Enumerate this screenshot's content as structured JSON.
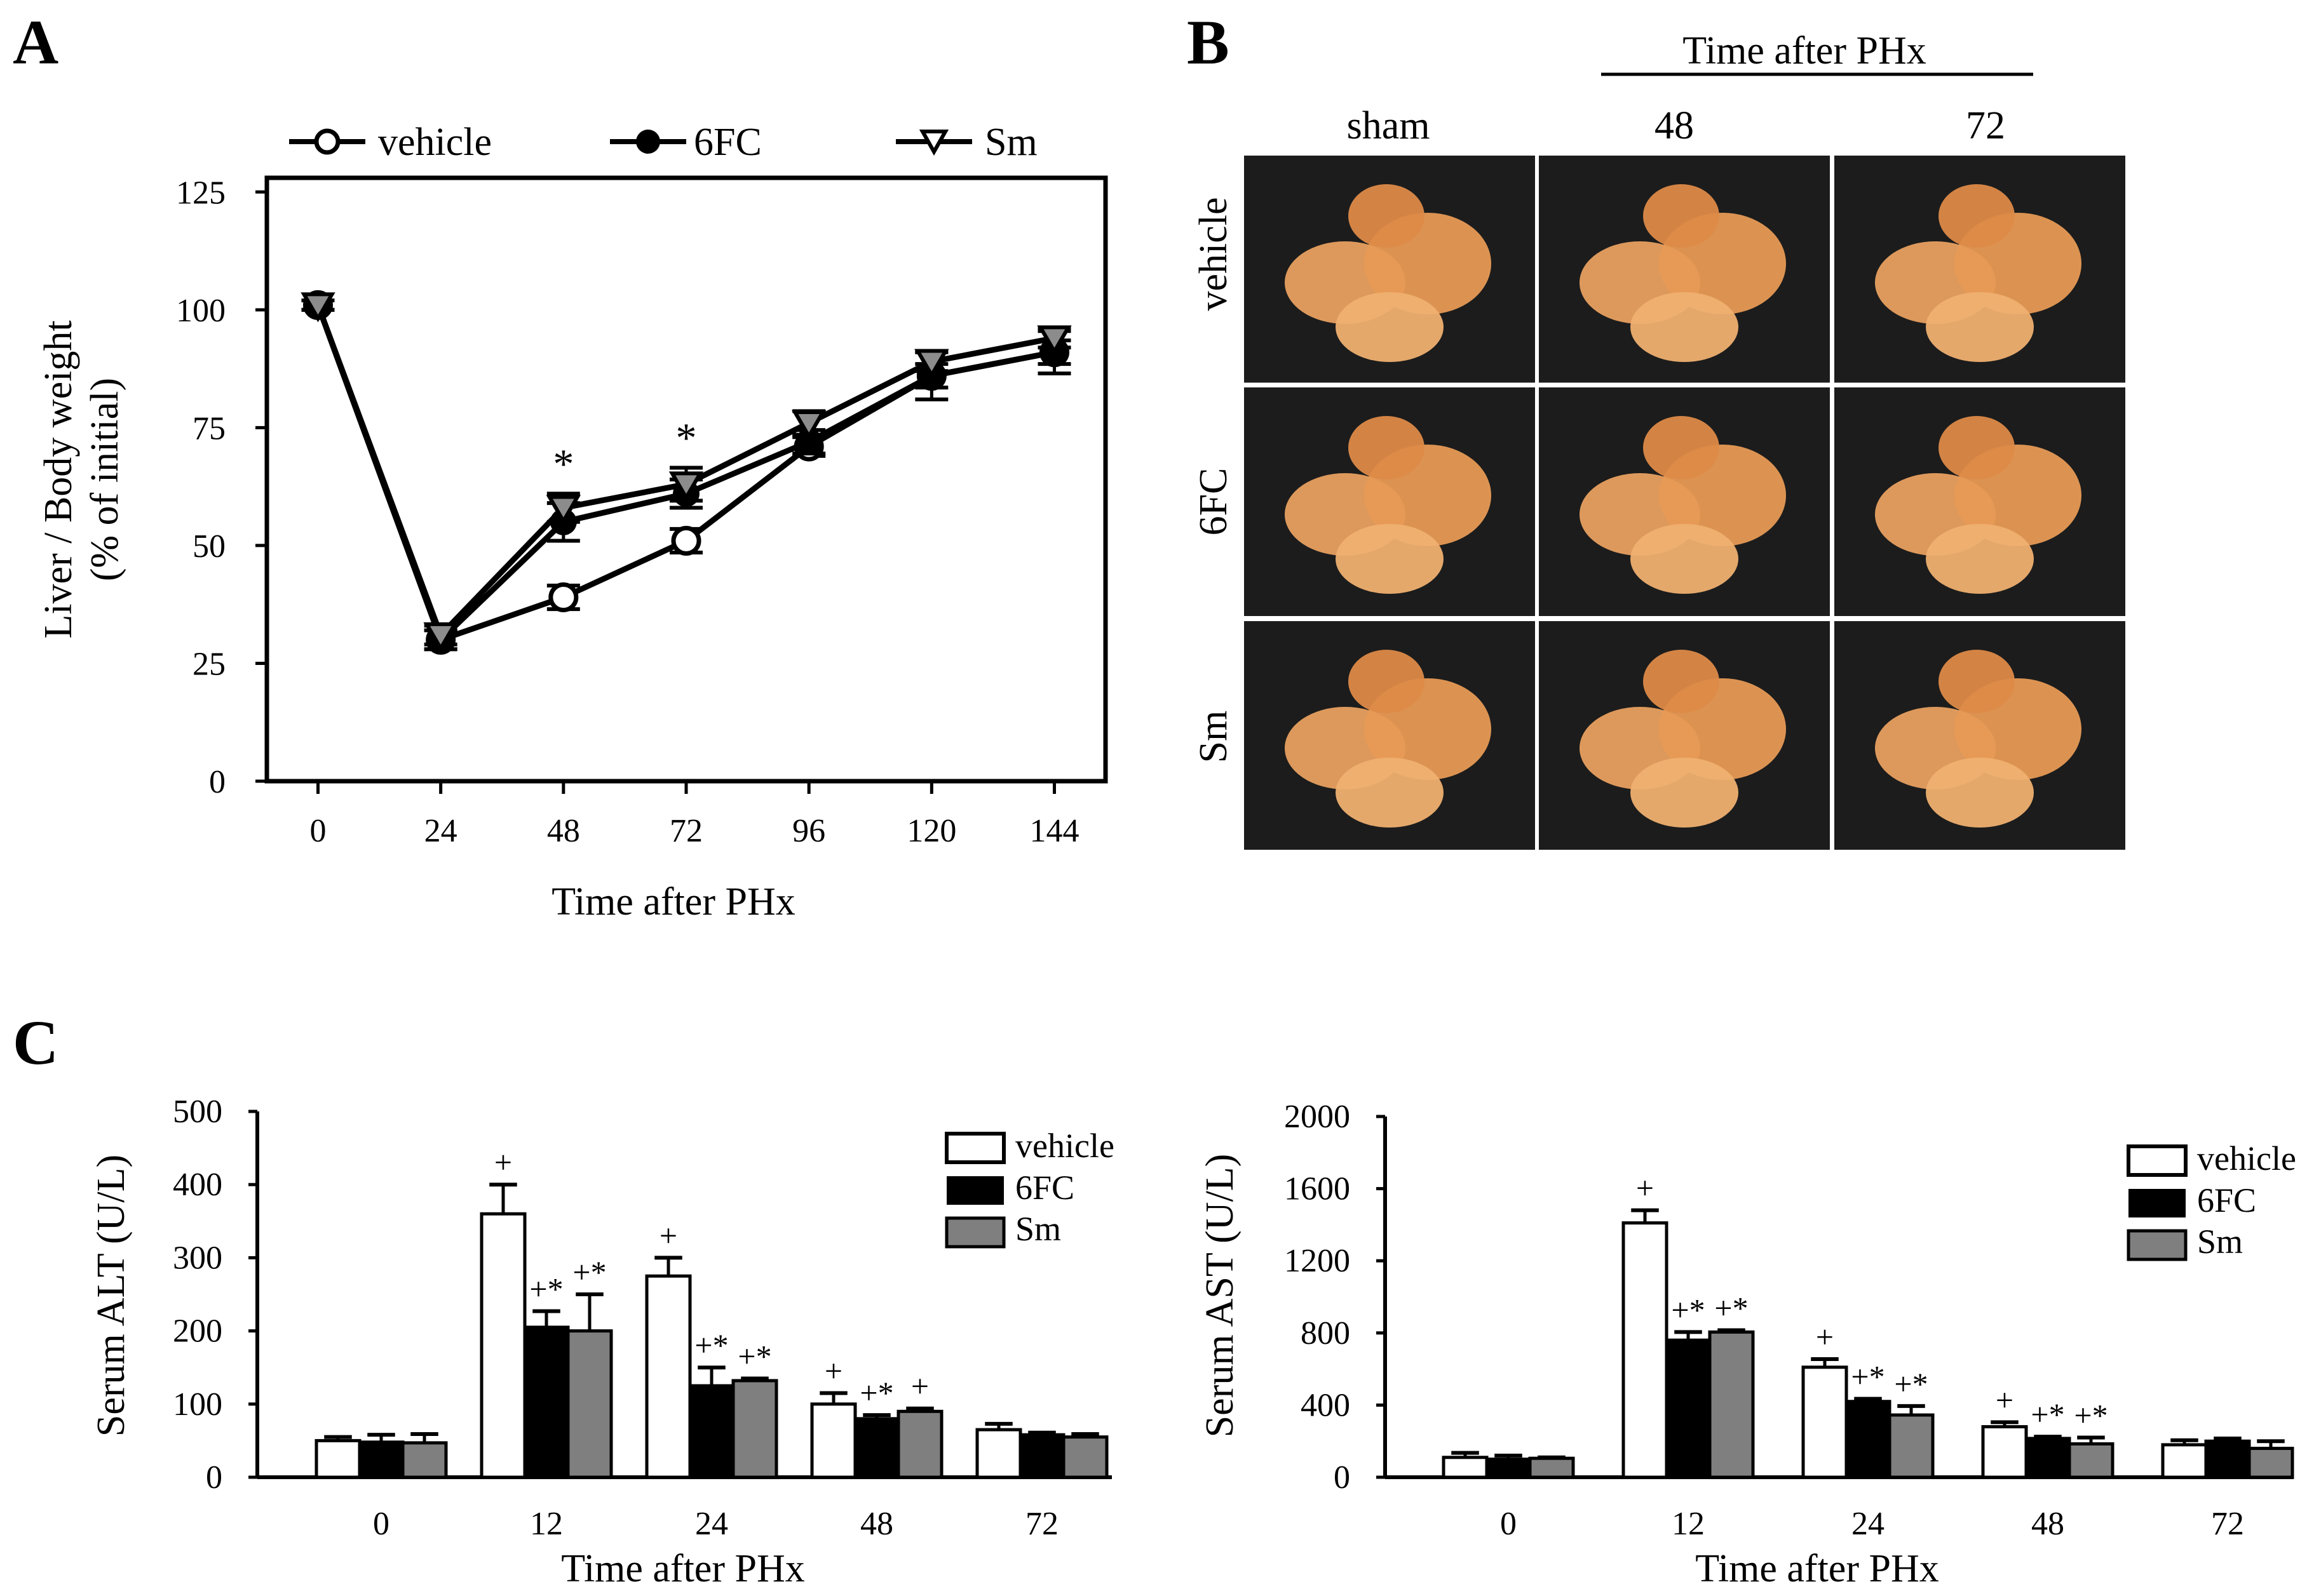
{
  "panels": {
    "a": "A",
    "b": "B",
    "c": "C"
  },
  "colors": {
    "vehicle": "#ffffff",
    "sixfc": "#000000",
    "sm": "#7f7f7f",
    "axis": "#000000",
    "photo_bg": "#1c1c1c",
    "liver": "#e8a060"
  },
  "chart_data": [
    {
      "id": "panelA",
      "type": "line",
      "title": "",
      "xlabel": "Time after PHx",
      "ylabel_line1": "Liver / Body weight",
      "ylabel_line2": "(% of initial)",
      "x": [
        0,
        24,
        48,
        72,
        96,
        120,
        144
      ],
      "x_tick_labels": [
        "0",
        "24",
        "48",
        "72",
        "96",
        "120",
        "144"
      ],
      "y_ticks": [
        0,
        25,
        50,
        75,
        100,
        125
      ],
      "y_tick_labels": [
        "0",
        "25",
        "50",
        "75",
        "100",
        "125"
      ],
      "xlim": [
        -10,
        154
      ],
      "ylim": [
        0,
        128
      ],
      "legend_position": "top",
      "series": [
        {
          "name": "vehicle",
          "marker": "open-circle",
          "values": [
            101,
            30,
            39,
            51,
            71,
            86,
            91
          ],
          "errors": [
            1,
            2,
            2.5,
            2.5,
            2,
            2.5,
            2.5
          ]
        },
        {
          "name": "6FC",
          "marker": "filled-circle",
          "values": [
            101,
            30,
            55,
            61,
            72,
            86,
            91
          ],
          "errors": [
            1,
            2,
            4,
            3,
            2.5,
            5,
            4.5
          ]
        },
        {
          "name": "Sm",
          "marker": "triangle-down",
          "values": [
            101,
            31,
            58,
            63,
            76,
            89,
            94
          ],
          "errors": [
            1,
            2,
            3,
            3.5,
            2.5,
            2,
            2
          ]
        }
      ],
      "annotations": [
        {
          "x": 48,
          "text": "*"
        },
        {
          "x": 72,
          "text": "*"
        }
      ]
    },
    {
      "id": "panelC_ALT",
      "type": "bar",
      "title": "",
      "xlabel": "Time after PHx",
      "ylabel": "Serum ALT (U/L)",
      "categories": [
        "0",
        "12",
        "24",
        "48",
        "72"
      ],
      "y_ticks": [
        0,
        100,
        200,
        300,
        400,
        500
      ],
      "y_tick_labels": [
        "0",
        "100",
        "200",
        "300",
        "400",
        "500"
      ],
      "ylim": [
        0,
        500
      ],
      "legend_position": "top-right",
      "series": [
        {
          "name": "vehicle",
          "values": [
            50,
            360,
            275,
            100,
            65
          ],
          "errors": [
            5,
            40,
            25,
            15,
            8
          ],
          "marks": [
            "",
            "+",
            "+",
            "+",
            ""
          ]
        },
        {
          "name": "6FC",
          "values": [
            48,
            205,
            125,
            80,
            58
          ],
          "errors": [
            10,
            22,
            25,
            5,
            3
          ],
          "marks": [
            "",
            "+*",
            "+*",
            "+*",
            ""
          ]
        },
        {
          "name": "Sm",
          "values": [
            47,
            200,
            132,
            90,
            55
          ],
          "errors": [
            12,
            50,
            3,
            4,
            4
          ],
          "marks": [
            "",
            "+*",
            "+*",
            "+",
            ""
          ]
        }
      ]
    },
    {
      "id": "panelC_AST",
      "type": "bar",
      "title": "",
      "xlabel": "Time after PHx",
      "ylabel": "Serum AST (U/L)",
      "categories": [
        "0",
        "12",
        "24",
        "48",
        "72"
      ],
      "y_ticks": [
        0,
        400,
        800,
        1200,
        1600,
        2000
      ],
      "y_tick_labels": [
        "0",
        "400",
        "800",
        "1200",
        "1600",
        "2000"
      ],
      "ylim": [
        0,
        2000
      ],
      "legend_position": "top-right",
      "series": [
        {
          "name": "vehicle",
          "values": [
            110,
            1410,
            610,
            280,
            180
          ],
          "errors": [
            25,
            70,
            45,
            25,
            25
          ],
          "marks": [
            "",
            "+",
            "+",
            "+",
            ""
          ]
        },
        {
          "name": "6FC",
          "values": [
            100,
            760,
            420,
            215,
            200
          ],
          "errors": [
            20,
            45,
            15,
            10,
            15
          ],
          "marks": [
            "",
            "+*",
            "+*",
            "+*",
            ""
          ]
        },
        {
          "name": "Sm",
          "values": [
            105,
            805,
            345,
            185,
            160
          ],
          "errors": [
            5,
            10,
            50,
            35,
            40
          ],
          "marks": [
            "",
            "+*",
            "+*",
            "+*",
            ""
          ]
        }
      ]
    }
  ],
  "photo_grid": {
    "header": "Time after PHx",
    "columns": [
      "sham",
      "48",
      "72"
    ],
    "rows": [
      "vehicle",
      "6FC",
      "Sm"
    ]
  }
}
